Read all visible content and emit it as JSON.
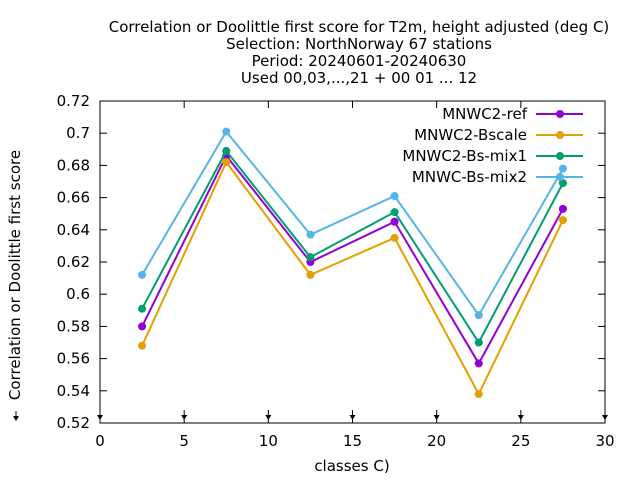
{
  "chart_data": {
    "type": "line",
    "title_lines": [
      "Correlation or Doolittle first score  for T2m, height adjusted (deg C)",
      "Selection: NorthNorway     67 stations",
      "Period: 20240601-20240630",
      "Used 00,03,...,21 + 00 01 ... 12"
    ],
    "xlabel": "classes C)",
    "ylabel": "Correlation or Doolittle first score",
    "xlim": [
      0,
      30
    ],
    "ylim": [
      0.52,
      0.72
    ],
    "xticks": [
      0,
      5,
      10,
      15,
      20,
      25,
      30
    ],
    "yticks": [
      0.52,
      0.54,
      0.56,
      0.58,
      0.6,
      0.62,
      0.64,
      0.66,
      0.68,
      0.7,
      0.72
    ],
    "ytick_labels": [
      "0.52",
      "0.54",
      "0.56",
      "0.58",
      "0.6",
      "0.62",
      "0.64",
      "0.66",
      "0.68",
      "0.7",
      "0.72"
    ],
    "xtick_labels": [
      "0",
      "5",
      "10",
      "15",
      "20",
      "25",
      "30"
    ],
    "x": [
      2.5,
      7.5,
      12.5,
      17.5,
      22.5,
      27.5
    ],
    "legend_position": "top-right",
    "grid": false,
    "series": [
      {
        "name": "MNWC2-ref",
        "color": "#9400d3",
        "values": [
          0.58,
          0.686,
          0.62,
          0.645,
          0.557,
          0.653
        ]
      },
      {
        "name": "MNWC2-Bscale",
        "color": "#e69f00",
        "values": [
          0.568,
          0.682,
          0.612,
          0.635,
          0.538,
          0.646
        ]
      },
      {
        "name": "MNWC2-Bs-mix1",
        "color": "#009e73",
        "values": [
          0.591,
          0.689,
          0.623,
          0.651,
          0.57,
          0.669
        ]
      },
      {
        "name": "MNWC-Bs-mix2",
        "color": "#56b4e9",
        "values": [
          0.612,
          0.701,
          0.637,
          0.661,
          0.587,
          0.678
        ]
      }
    ]
  }
}
